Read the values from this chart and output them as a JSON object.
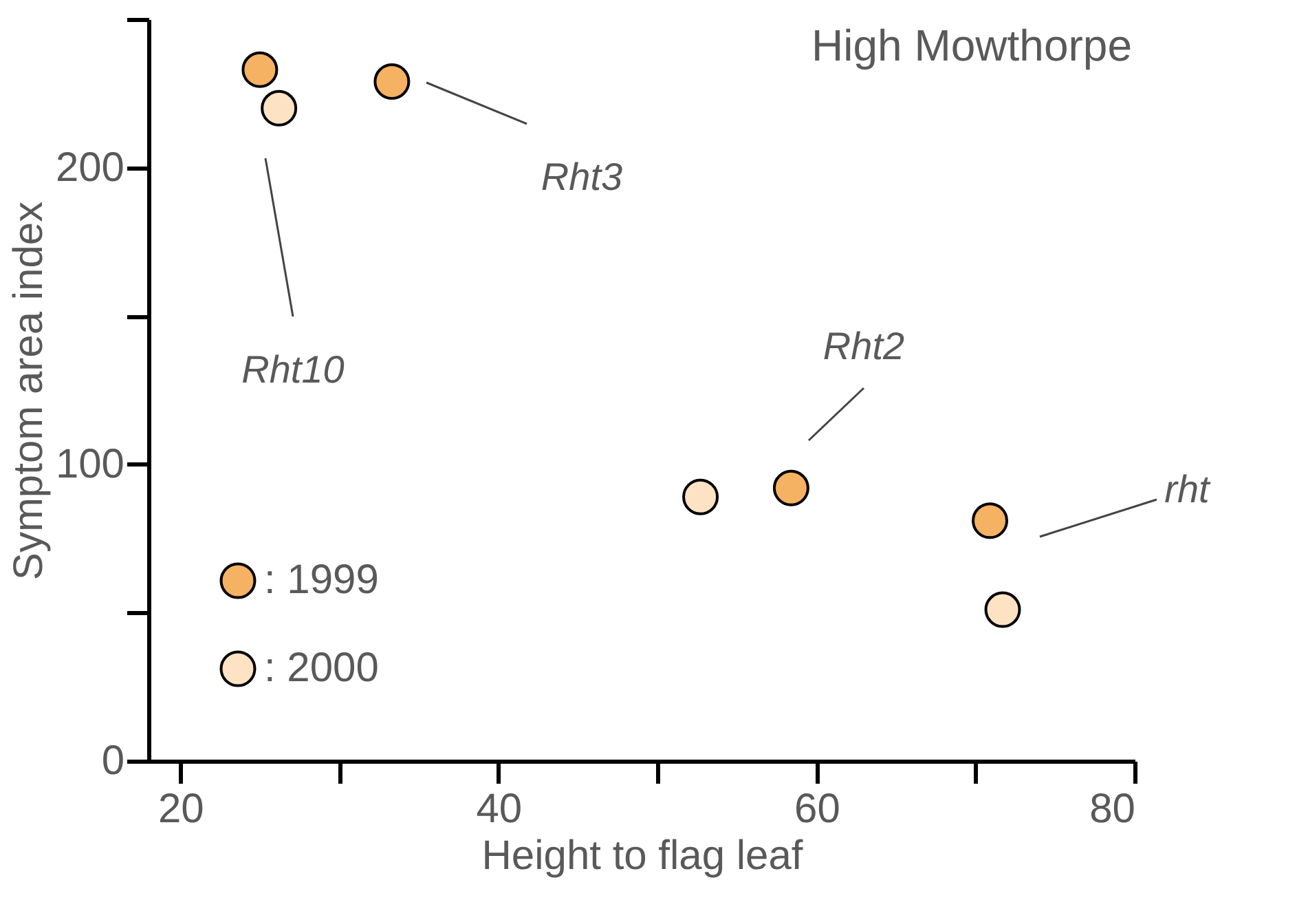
{
  "chart_data": {
    "type": "scatter",
    "title": "High Mowthorpe",
    "xlabel": "Height to flag leaf",
    "ylabel": "Symptom area index",
    "series": [
      {
        "name": ": 1999",
        "color": "#f5b262",
        "x": [
          25.0,
          33.3,
          58.4,
          70.9
        ],
        "values": [
          233,
          229,
          92,
          81
        ]
      },
      {
        "name": ": 2000",
        "color": "#fde3c4",
        "x": [
          26.2,
          52.7,
          71.7
        ],
        "values": [
          220,
          89,
          51
        ]
      }
    ],
    "xlim": [
      18,
      80
    ],
    "xticks": [
      20,
      {
        "value": 30,
        "label": null
      },
      40,
      {
        "value": 50,
        "label": null
      },
      60,
      {
        "value": 70,
        "label": null
      },
      80
    ],
    "ylim": [
      0,
      250
    ],
    "yticks": [
      0,
      {
        "value": 50,
        "label": null
      },
      100,
      {
        "value": 150,
        "label": null
      },
      200,
      {
        "value": 250,
        "label": null
      }
    ],
    "annotations": [
      "Rht10",
      "Rht3",
      "Rht2",
      "rht"
    ],
    "marker": "circle",
    "grid": false,
    "legend": "bottom left"
  }
}
